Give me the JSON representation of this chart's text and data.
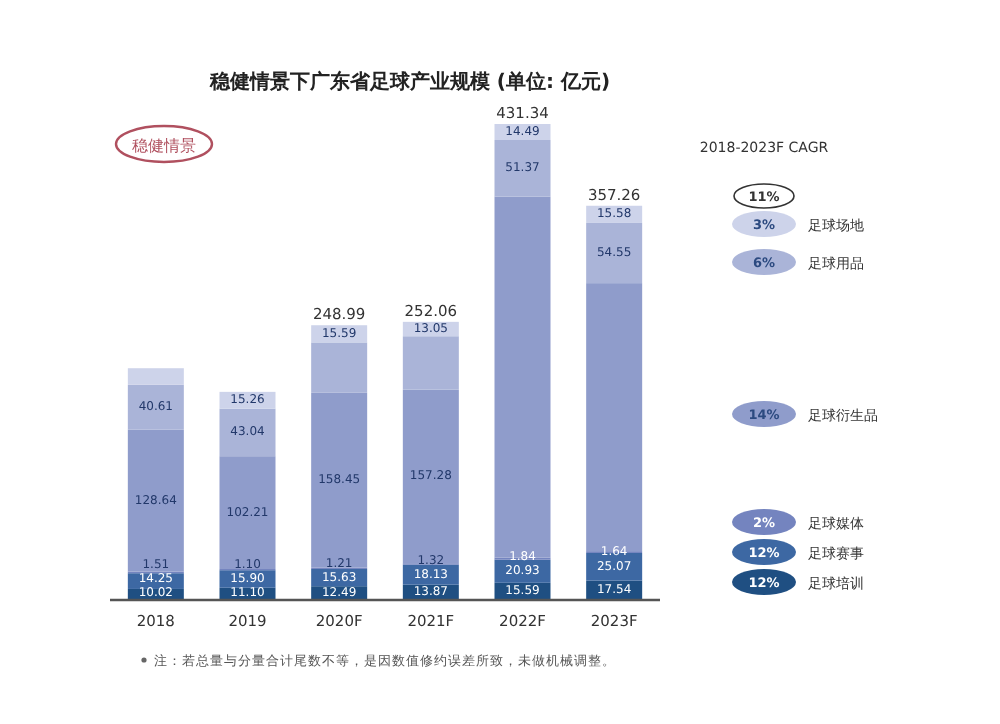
{
  "chart_data": {
    "type": "bar",
    "stacked": true,
    "title": "稳健情景下广东省足球产业规模 (单位: 亿元)",
    "categories": [
      "2018",
      "2019",
      "2020F",
      "2021F",
      "2022F",
      "2023F"
    ],
    "series": [
      {
        "name": "足球培训",
        "color": "#1f4f82",
        "values": [
          10.02,
          11.1,
          12.49,
          13.87,
          15.59,
          17.54
        ],
        "value_labels": [
          "10.02",
          "11.10",
          "12.49",
          "13.87",
          "15.59",
          "17.54"
        ]
      },
      {
        "name": "足球赛事",
        "color": "#3d68a3",
        "values": [
          14.25,
          15.9,
          15.63,
          18.13,
          20.93,
          25.07
        ],
        "value_labels": [
          "14.25",
          "15.90",
          "15.63",
          "18.13",
          "20.93",
          "25.07"
        ]
      },
      {
        "name": "足球媒体",
        "color": "#7484bf",
        "values": [
          1.51,
          1.1,
          1.21,
          1.32,
          1.84,
          1.64
        ],
        "value_labels": [
          "1.51",
          "1.10",
          "1.21",
          "1.32",
          "1.84",
          "1.64"
        ]
      },
      {
        "name": "足球衍生品",
        "color": "#8f9ccb",
        "values": [
          128.64,
          102.21,
          158.45,
          157.28,
          327.12,
          242.88
        ],
        "value_labels": [
          "128.64",
          "102.21",
          "158.45",
          "157.28",
          null,
          null
        ]
      },
      {
        "name": "足球用品",
        "color": "#aab4d8",
        "values": [
          40.61,
          43.04,
          45.62,
          48.41,
          51.37,
          54.55
        ],
        "value_labels": [
          "40.61",
          "43.04",
          null,
          null,
          "51.37",
          "54.55"
        ]
      },
      {
        "name": "足球场地",
        "color": "#cdd3ea",
        "values": [
          15,
          15.26,
          15.59,
          13.05,
          14.49,
          15.58
        ],
        "value_labels": [
          null,
          "15.26",
          "15.59",
          "13.05",
          "14.49",
          "15.58"
        ]
      }
    ],
    "totals": [
      null,
      null,
      "248.99",
      "252.06",
      "431.34",
      "357.26"
    ],
    "legend": "right",
    "annotations": [
      "稳健情景",
      "2018-2023F CAGR",
      "11%",
      "3%",
      "6%",
      "14%",
      "2%",
      "12%",
      "12%",
      "注：若总量与分量合计尾数不等，是因数值修约误差所致，未做机械调整。"
    ]
  }
}
